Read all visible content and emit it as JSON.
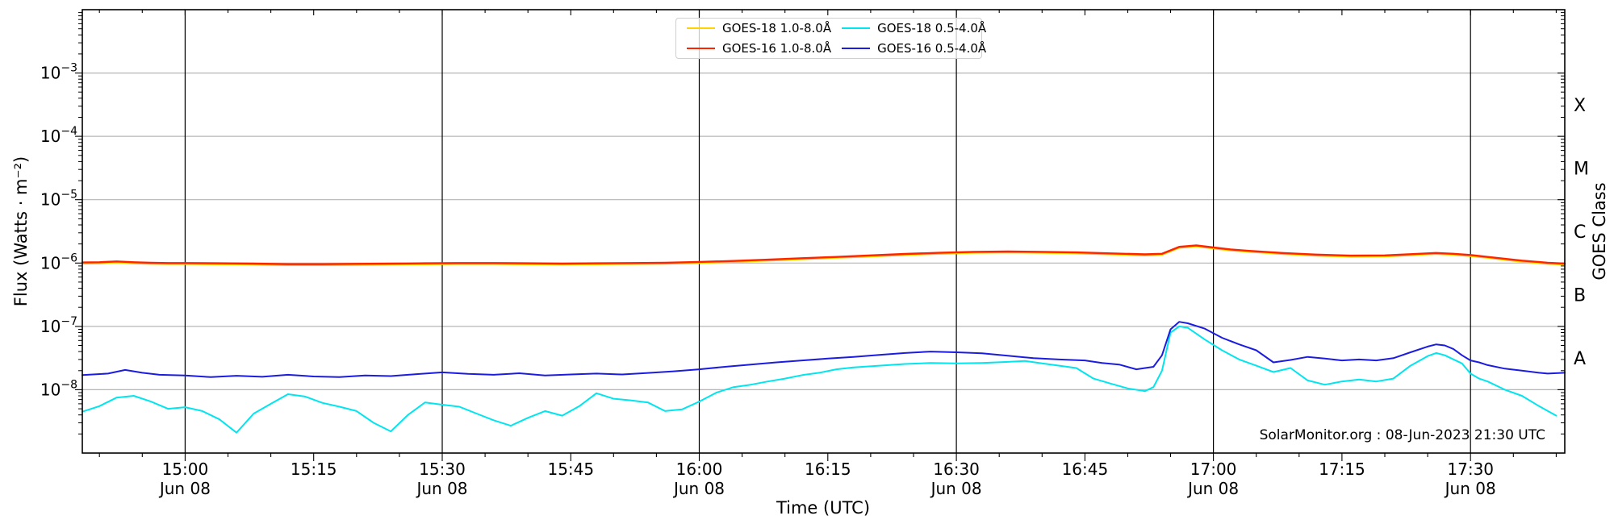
{
  "chart_data": {
    "type": "line",
    "title": "",
    "xlabel": "Time (UTC)",
    "ylabel": "Flux (Watts · m⁻²)",
    "ylabel_right": "GOES Class",
    "annotation": "SolarMonitor.org : 08-Jun-2023 21:30 UTC",
    "x_unit": "minutes after 14:48 UTC (left plot edge)",
    "x_range_utc": [
      "14:48",
      "17:41"
    ],
    "x_axis": {
      "minor_tick_minutes": 5,
      "ticks": [
        {
          "t": 12,
          "label": "15:00",
          "date": "Jun 08"
        },
        {
          "t": 27,
          "label": "15:15"
        },
        {
          "t": 42,
          "label": "15:30",
          "date": "Jun 08"
        },
        {
          "t": 57,
          "label": "15:45"
        },
        {
          "t": 72,
          "label": "16:00",
          "date": "Jun 08"
        },
        {
          "t": 87,
          "label": "16:15"
        },
        {
          "t": 102,
          "label": "16:30",
          "date": "Jun 08"
        },
        {
          "t": 117,
          "label": "16:45"
        },
        {
          "t": 132,
          "label": "17:00",
          "date": "Jun 08"
        },
        {
          "t": 147,
          "label": "17:15"
        },
        {
          "t": 162,
          "label": "17:30",
          "date": "Jun 08"
        }
      ]
    },
    "y_axis": {
      "scale": "log",
      "range_exponents": [
        -9,
        -2
      ],
      "exponent_ticks": [
        -3,
        -4,
        -5,
        -6,
        -7,
        -8
      ],
      "gridlines": true
    },
    "right_axis": {
      "label": "GOES Class",
      "classes": [
        {
          "letter": "X",
          "mid_exponent": -3.5
        },
        {
          "letter": "M",
          "mid_exponent": -4.5
        },
        {
          "letter": "C",
          "mid_exponent": -5.5
        },
        {
          "letter": "B",
          "mid_exponent": -6.5
        },
        {
          "letter": "A",
          "mid_exponent": -7.5
        }
      ]
    },
    "colors": {
      "goes18_long": "#ffd200",
      "goes16_long": "#ff2400",
      "goes18_short": "#00e5ee",
      "goes16_short": "#1c1ce0",
      "h_grid": "#b5b5b5",
      "v_grid": "#000000",
      "frame": "#000000"
    },
    "legend": [
      {
        "label": "GOES-18 1.0-8.0Å",
        "color": "#ffd200"
      },
      {
        "label": "GOES-16 1.0-8.0Å",
        "color": "#ff2400"
      },
      {
        "label": "GOES-18 0.5-4.0Å",
        "color": "#00e5ee"
      },
      {
        "label": "GOES-16 0.5-4.0Å",
        "color": "#1c1ce0"
      }
    ],
    "series": [
      {
        "id": "goes18-long",
        "name": "GOES-18 1.0-8.0Å",
        "color": "#ffd200",
        "width": 2.2,
        "points": [
          [
            0,
            9.8e-07
          ],
          [
            2,
            9.9e-07
          ],
          [
            4,
            1.02e-06
          ],
          [
            6,
            9.9e-07
          ],
          [
            8,
            9.7e-07
          ],
          [
            10,
            9.65e-07
          ],
          [
            12,
            9.65e-07
          ],
          [
            16,
            9.55e-07
          ],
          [
            20,
            9.45e-07
          ],
          [
            24,
            9.25e-07
          ],
          [
            28,
            9.25e-07
          ],
          [
            32,
            9.35e-07
          ],
          [
            36,
            9.45e-07
          ],
          [
            40,
            9.55e-07
          ],
          [
            44,
            9.65e-07
          ],
          [
            48,
            9.65e-07
          ],
          [
            52,
            9.55e-07
          ],
          [
            56,
            9.45e-07
          ],
          [
            60,
            9.55e-07
          ],
          [
            64,
            9.65e-07
          ],
          [
            68,
            9.75e-07
          ],
          [
            72,
            1e-06
          ],
          [
            76,
            1.04e-06
          ],
          [
            80,
            1.09e-06
          ],
          [
            84,
            1.15e-06
          ],
          [
            88,
            1.21e-06
          ],
          [
            92,
            1.27e-06
          ],
          [
            96,
            1.34e-06
          ],
          [
            100,
            1.4e-06
          ],
          [
            104,
            1.45e-06
          ],
          [
            108,
            1.47e-06
          ],
          [
            112,
            1.45e-06
          ],
          [
            116,
            1.42e-06
          ],
          [
            120,
            1.37e-06
          ],
          [
            124,
            1.32e-06
          ],
          [
            126,
            1.35e-06
          ],
          [
            128,
            1.74e-06
          ],
          [
            130,
            1.83e-06
          ],
          [
            132,
            1.7e-06
          ],
          [
            134,
            1.58e-06
          ],
          [
            136,
            1.51e-06
          ],
          [
            140,
            1.39e-06
          ],
          [
            144,
            1.31e-06
          ],
          [
            148,
            1.26e-06
          ],
          [
            152,
            1.27e-06
          ],
          [
            156,
            1.35e-06
          ],
          [
            158,
            1.39e-06
          ],
          [
            160,
            1.35e-06
          ],
          [
            162,
            1.29e-06
          ],
          [
            164,
            1.21e-06
          ],
          [
            168,
            1.05e-06
          ],
          [
            171,
            9.7e-07
          ],
          [
            173,
            9.45e-07
          ]
        ]
      },
      {
        "id": "goes16-long",
        "name": "GOES-16 1.0-8.0Å",
        "color": "#ff2400",
        "width": 2.4,
        "points": [
          [
            0,
            1.02e-06
          ],
          [
            2,
            1.03e-06
          ],
          [
            4,
            1.06e-06
          ],
          [
            6,
            1.03e-06
          ],
          [
            8,
            1.01e-06
          ],
          [
            10,
            1e-06
          ],
          [
            12,
            1e-06
          ],
          [
            16,
            9.9e-07
          ],
          [
            20,
            9.8e-07
          ],
          [
            24,
            9.6e-07
          ],
          [
            28,
            9.6e-07
          ],
          [
            32,
            9.7e-07
          ],
          [
            36,
            9.8e-07
          ],
          [
            40,
            9.9e-07
          ],
          [
            44,
            1e-06
          ],
          [
            48,
            1e-06
          ],
          [
            52,
            9.9e-07
          ],
          [
            56,
            9.8e-07
          ],
          [
            60,
            9.9e-07
          ],
          [
            64,
            1e-06
          ],
          [
            68,
            1.01e-06
          ],
          [
            72,
            1.04e-06
          ],
          [
            76,
            1.08e-06
          ],
          [
            80,
            1.13e-06
          ],
          [
            84,
            1.19e-06
          ],
          [
            88,
            1.25e-06
          ],
          [
            92,
            1.32e-06
          ],
          [
            96,
            1.39e-06
          ],
          [
            100,
            1.45e-06
          ],
          [
            104,
            1.5e-06
          ],
          [
            108,
            1.52e-06
          ],
          [
            112,
            1.5e-06
          ],
          [
            116,
            1.47e-06
          ],
          [
            120,
            1.42e-06
          ],
          [
            124,
            1.37e-06
          ],
          [
            126,
            1.4e-06
          ],
          [
            128,
            1.8e-06
          ],
          [
            130,
            1.9e-06
          ],
          [
            132,
            1.76e-06
          ],
          [
            134,
            1.64e-06
          ],
          [
            136,
            1.56e-06
          ],
          [
            140,
            1.44e-06
          ],
          [
            144,
            1.36e-06
          ],
          [
            148,
            1.31e-06
          ],
          [
            152,
            1.32e-06
          ],
          [
            156,
            1.4e-06
          ],
          [
            158,
            1.44e-06
          ],
          [
            160,
            1.4e-06
          ],
          [
            162,
            1.34e-06
          ],
          [
            164,
            1.25e-06
          ],
          [
            168,
            1.09e-06
          ],
          [
            171,
            1.01e-06
          ],
          [
            173,
            9.8e-07
          ]
        ]
      },
      {
        "id": "goes18-short",
        "name": "GOES-18 0.5-4.0Å",
        "color": "#00e5ee",
        "width": 2.0,
        "points": [
          [
            0,
            4.5e-09
          ],
          [
            2,
            5.5e-09
          ],
          [
            4,
            7.5e-09
          ],
          [
            6,
            8e-09
          ],
          [
            8,
            6.5e-09
          ],
          [
            10,
            5e-09
          ],
          [
            12,
            5.3e-09
          ],
          [
            14,
            4.6e-09
          ],
          [
            16,
            3.4e-09
          ],
          [
            18,
            2.1e-09
          ],
          [
            20,
            4.2e-09
          ],
          [
            22,
            6e-09
          ],
          [
            24,
            8.5e-09
          ],
          [
            26,
            7.8e-09
          ],
          [
            28,
            6.2e-09
          ],
          [
            30,
            5.4e-09
          ],
          [
            32,
            4.6e-09
          ],
          [
            34,
            3e-09
          ],
          [
            36,
            2.2e-09
          ],
          [
            38,
            4e-09
          ],
          [
            40,
            6.3e-09
          ],
          [
            42,
            5.8e-09
          ],
          [
            44,
            5.4e-09
          ],
          [
            46,
            4.2e-09
          ],
          [
            48,
            3.3e-09
          ],
          [
            50,
            2.7e-09
          ],
          [
            52,
            3.6e-09
          ],
          [
            54,
            4.6e-09
          ],
          [
            56,
            3.9e-09
          ],
          [
            58,
            5.5e-09
          ],
          [
            60,
            8.8e-09
          ],
          [
            62,
            7.2e-09
          ],
          [
            64,
            6.8e-09
          ],
          [
            66,
            6.3e-09
          ],
          [
            68,
            4.6e-09
          ],
          [
            70,
            4.9e-09
          ],
          [
            72,
            6.5e-09
          ],
          [
            74,
            9e-09
          ],
          [
            76,
            1.1e-08
          ],
          [
            78,
            1.2e-08
          ],
          [
            80,
            1.35e-08
          ],
          [
            82,
            1.5e-08
          ],
          [
            84,
            1.7e-08
          ],
          [
            86,
            1.85e-08
          ],
          [
            88,
            2.1e-08
          ],
          [
            90,
            2.25e-08
          ],
          [
            93,
            2.4e-08
          ],
          [
            96,
            2.55e-08
          ],
          [
            99,
            2.65e-08
          ],
          [
            102,
            2.6e-08
          ],
          [
            105,
            2.65e-08
          ],
          [
            108,
            2.75e-08
          ],
          [
            110,
            2.85e-08
          ],
          [
            112,
            2.6e-08
          ],
          [
            114,
            2.4e-08
          ],
          [
            116,
            2.2e-08
          ],
          [
            118,
            1.5e-08
          ],
          [
            120,
            1.25e-08
          ],
          [
            122,
            1.05e-08
          ],
          [
            124,
            9.5e-09
          ],
          [
            125,
            1.1e-08
          ],
          [
            126,
            2e-08
          ],
          [
            127,
            8e-08
          ],
          [
            128,
            1e-07
          ],
          [
            129,
            9.5e-08
          ],
          [
            131,
            6.2e-08
          ],
          [
            133,
            4.2e-08
          ],
          [
            135,
            3e-08
          ],
          [
            137,
            2.4e-08
          ],
          [
            139,
            1.9e-08
          ],
          [
            141,
            2.2e-08
          ],
          [
            143,
            1.4e-08
          ],
          [
            145,
            1.2e-08
          ],
          [
            147,
            1.35e-08
          ],
          [
            149,
            1.45e-08
          ],
          [
            151,
            1.35e-08
          ],
          [
            153,
            1.5e-08
          ],
          [
            155,
            2.4e-08
          ],
          [
            157,
            3.4e-08
          ],
          [
            158,
            3.8e-08
          ],
          [
            159,
            3.5e-08
          ],
          [
            161,
            2.6e-08
          ],
          [
            162,
            1.8e-08
          ],
          [
            163,
            1.5e-08
          ],
          [
            164,
            1.35e-08
          ],
          [
            166,
            1e-08
          ],
          [
            168,
            8e-09
          ],
          [
            170,
            5.5e-09
          ],
          [
            172,
            3.9e-09
          ]
        ]
      },
      {
        "id": "goes16-short",
        "name": "GOES-16 0.5-4.0Å",
        "color": "#1c1ce0",
        "width": 2.0,
        "points": [
          [
            0,
            1.7e-08
          ],
          [
            3,
            1.8e-08
          ],
          [
            5,
            2.05e-08
          ],
          [
            7,
            1.85e-08
          ],
          [
            9,
            1.72e-08
          ],
          [
            12,
            1.68e-08
          ],
          [
            15,
            1.58e-08
          ],
          [
            18,
            1.66e-08
          ],
          [
            21,
            1.6e-08
          ],
          [
            24,
            1.72e-08
          ],
          [
            27,
            1.62e-08
          ],
          [
            30,
            1.58e-08
          ],
          [
            33,
            1.68e-08
          ],
          [
            36,
            1.64e-08
          ],
          [
            39,
            1.76e-08
          ],
          [
            42,
            1.88e-08
          ],
          [
            45,
            1.78e-08
          ],
          [
            48,
            1.72e-08
          ],
          [
            51,
            1.82e-08
          ],
          [
            54,
            1.68e-08
          ],
          [
            57,
            1.74e-08
          ],
          [
            60,
            1.8e-08
          ],
          [
            63,
            1.74e-08
          ],
          [
            66,
            1.84e-08
          ],
          [
            69,
            1.95e-08
          ],
          [
            72,
            2.1e-08
          ],
          [
            75,
            2.3e-08
          ],
          [
            78,
            2.5e-08
          ],
          [
            81,
            2.7e-08
          ],
          [
            84,
            2.9e-08
          ],
          [
            87,
            3.1e-08
          ],
          [
            90,
            3.3e-08
          ],
          [
            93,
            3.55e-08
          ],
          [
            96,
            3.8e-08
          ],
          [
            99,
            4e-08
          ],
          [
            102,
            3.9e-08
          ],
          [
            105,
            3.75e-08
          ],
          [
            108,
            3.45e-08
          ],
          [
            111,
            3.15e-08
          ],
          [
            114,
            3e-08
          ],
          [
            117,
            2.9e-08
          ],
          [
            119,
            2.65e-08
          ],
          [
            121,
            2.5e-08
          ],
          [
            123,
            2.1e-08
          ],
          [
            125,
            2.3e-08
          ],
          [
            126,
            3.5e-08
          ],
          [
            127,
            9e-08
          ],
          [
            128,
            1.18e-07
          ],
          [
            129,
            1.12e-07
          ],
          [
            131,
            9.2e-08
          ],
          [
            133,
            6.6e-08
          ],
          [
            135,
            5.2e-08
          ],
          [
            137,
            4.2e-08
          ],
          [
            139,
            2.7e-08
          ],
          [
            141,
            2.95e-08
          ],
          [
            143,
            3.3e-08
          ],
          [
            145,
            3.1e-08
          ],
          [
            147,
            2.9e-08
          ],
          [
            149,
            3e-08
          ],
          [
            151,
            2.9e-08
          ],
          [
            153,
            3.15e-08
          ],
          [
            155,
            3.9e-08
          ],
          [
            157,
            4.8e-08
          ],
          [
            158,
            5.2e-08
          ],
          [
            159,
            5e-08
          ],
          [
            160,
            4.4e-08
          ],
          [
            161,
            3.5e-08
          ],
          [
            162,
            2.9e-08
          ],
          [
            163,
            2.7e-08
          ],
          [
            164,
            2.45e-08
          ],
          [
            166,
            2.15e-08
          ],
          [
            168,
            2e-08
          ],
          [
            170,
            1.85e-08
          ],
          [
            171,
            1.8e-08
          ],
          [
            173,
            1.85e-08
          ]
        ]
      }
    ]
  }
}
